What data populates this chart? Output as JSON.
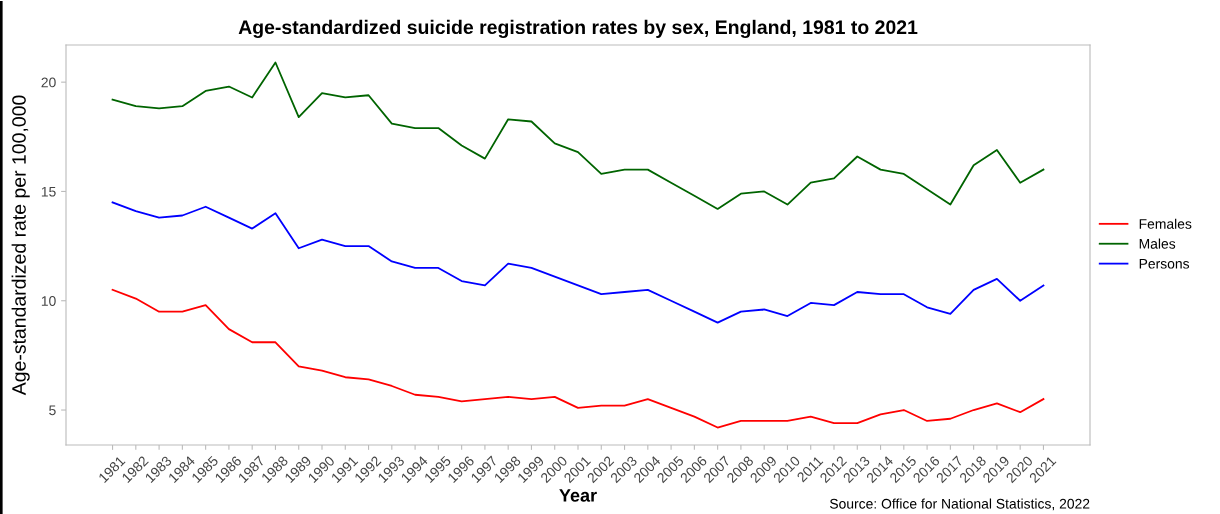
{
  "chart_data": {
    "type": "line",
    "title": "Age-standardized suicide registration rates by sex, England, 1981 to 2021",
    "xlabel": "Year",
    "ylabel": "Age-standardized rate per 100,000",
    "categories": [
      "1981",
      "1982",
      "1983",
      "1984",
      "1985",
      "1986",
      "1987",
      "1988",
      "1989",
      "1990",
      "1991",
      "1992",
      "1993",
      "1994",
      "1995",
      "1996",
      "1997",
      "1998",
      "1999",
      "2000",
      "2001",
      "2002",
      "2003",
      "2004",
      "2005",
      "2006",
      "2007",
      "2008",
      "2009",
      "2010",
      "2011",
      "2012",
      "2013",
      "2014",
      "2015",
      "2016",
      "2017",
      "2018",
      "2019",
      "2020",
      "2021"
    ],
    "series": [
      {
        "name": "Females",
        "color": "#ff0000",
        "values": [
          10.5,
          10.1,
          9.5,
          9.5,
          9.8,
          8.7,
          8.1,
          8.1,
          7.0,
          6.8,
          6.5,
          6.4,
          6.1,
          5.7,
          5.6,
          5.4,
          5.5,
          5.6,
          5.5,
          5.6,
          5.1,
          5.2,
          5.2,
          5.5,
          5.1,
          4.7,
          4.2,
          4.5,
          4.5,
          4.5,
          4.7,
          4.4,
          4.4,
          4.8,
          5.0,
          4.5,
          4.6,
          5.0,
          5.3,
          4.9,
          5.5
        ]
      },
      {
        "name": "Males",
        "color": "#006400",
        "values": [
          19.2,
          18.9,
          18.8,
          18.9,
          19.6,
          19.8,
          19.3,
          20.9,
          18.4,
          19.5,
          19.3,
          19.4,
          18.1,
          17.9,
          17.9,
          17.1,
          16.5,
          18.3,
          18.2,
          17.2,
          16.8,
          15.8,
          16.0,
          16.0,
          15.4,
          14.8,
          14.2,
          14.9,
          15.0,
          14.4,
          15.4,
          15.6,
          16.6,
          16.0,
          15.8,
          15.1,
          14.4,
          16.2,
          16.9,
          15.4,
          16.0
        ]
      },
      {
        "name": "Persons",
        "color": "#0000ff",
        "values": [
          14.5,
          14.1,
          13.8,
          13.9,
          14.3,
          13.8,
          13.3,
          14.0,
          12.4,
          12.8,
          12.5,
          12.5,
          11.8,
          11.5,
          11.5,
          10.9,
          10.7,
          11.7,
          11.5,
          11.1,
          10.7,
          10.3,
          10.4,
          10.5,
          10.0,
          9.5,
          9.0,
          9.5,
          9.6,
          9.3,
          9.9,
          9.8,
          10.4,
          10.3,
          10.3,
          9.7,
          9.4,
          10.5,
          11.0,
          10.0,
          10.7
        ]
      }
    ],
    "ylim": [
      3.4,
      21.7
    ],
    "yticks": [
      5,
      10,
      15,
      20
    ],
    "grid": false,
    "legend": "right",
    "marker": "none",
    "line_style": "solid",
    "annotations": [
      "Source: Office for National Statistics, 2022"
    ]
  }
}
